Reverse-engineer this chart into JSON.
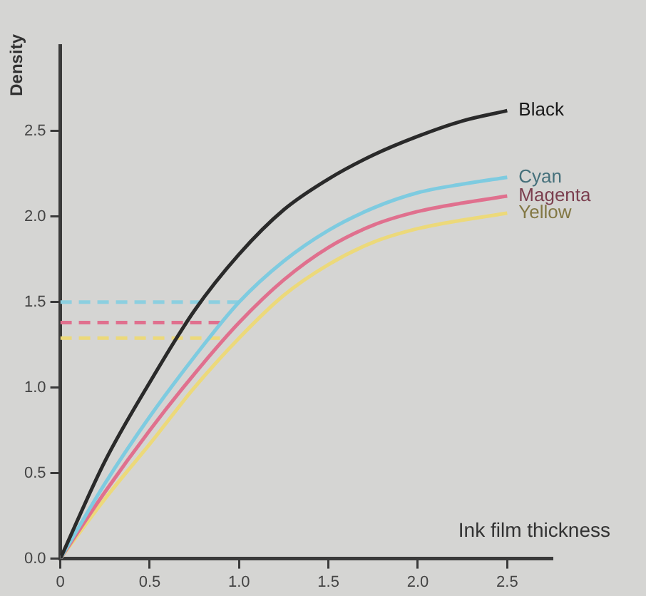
{
  "chart_data": {
    "type": "line",
    "xlabel": "Ink film thickness",
    "ylabel": "Density",
    "x": [
      0,
      0.25,
      0.5,
      0.75,
      1,
      1.25,
      1.5,
      1.75,
      2,
      2.25,
      2.5
    ],
    "series": [
      {
        "name": "Black",
        "color": "#2a2a2a",
        "values": [
          0,
          0.57,
          1.03,
          1.45,
          1.78,
          2.04,
          2.22,
          2.36,
          2.47,
          2.56,
          2.62
        ]
      },
      {
        "name": "Cyan",
        "color": "#7ecbe0",
        "values": [
          0,
          0.44,
          0.83,
          1.18,
          1.5,
          1.74,
          1.92,
          2.05,
          2.14,
          2.19,
          2.23
        ]
      },
      {
        "name": "Magenta",
        "color": "#e0708e",
        "values": [
          0,
          0.39,
          0.75,
          1.08,
          1.38,
          1.63,
          1.82,
          1.95,
          2.03,
          2.08,
          2.12
        ]
      },
      {
        "name": "Yellow",
        "color": "#ecd97a",
        "values": [
          0,
          0.35,
          0.67,
          1.0,
          1.29,
          1.54,
          1.72,
          1.85,
          1.93,
          1.98,
          2.02
        ]
      },
      {
        "color": "#8ccfe0",
        "x": [
          0,
          1.0
        ],
        "values": [
          1.5,
          1.5
        ],
        "line_style": "dashed"
      },
      {
        "color": "#e0708e",
        "x": [
          0,
          0.9
        ],
        "values": [
          1.38,
          1.38
        ],
        "line_style": "dashed"
      },
      {
        "color": "#ecd97a",
        "x": [
          0,
          0.9
        ],
        "values": [
          1.29,
          1.29
        ],
        "line_style": "dashed"
      }
    ],
    "xlim": [
      0,
      2.75
    ],
    "ylim": [
      0,
      3
    ],
    "xticks": [
      0,
      {
        "value": 0.5,
        "label": "0.5"
      },
      {
        "value": 1,
        "label": "1.0"
      },
      {
        "value": 1.5,
        "label": "1.5"
      },
      {
        "value": 2,
        "label": "2.0"
      },
      {
        "value": 2.5,
        "label": "2.5"
      }
    ],
    "yticks": [
      {
        "value": 0,
        "label": "0.0"
      },
      {
        "value": 0.5,
        "label": "0.5"
      },
      {
        "value": 1,
        "label": "1.0"
      },
      {
        "value": 1.5,
        "label": "1.5"
      },
      {
        "value": 2,
        "label": "2.0"
      },
      {
        "value": 2.5,
        "label": "2.5"
      }
    ],
    "grid": false,
    "legend": false,
    "marker": "none",
    "line_style": "solid"
  }
}
